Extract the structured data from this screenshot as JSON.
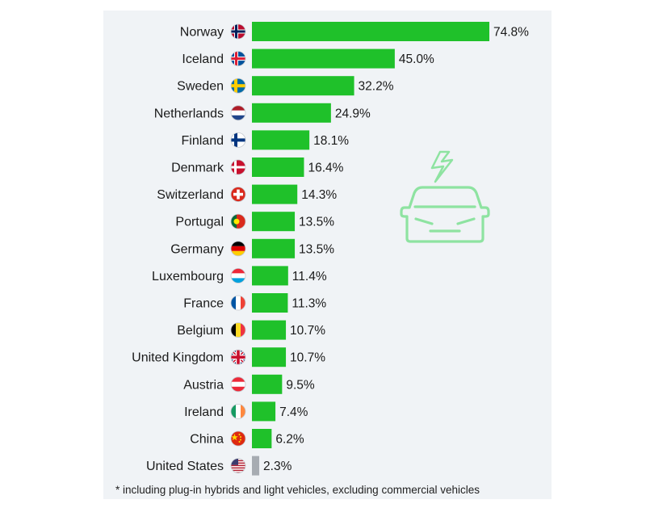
{
  "chart_data": {
    "type": "bar",
    "orientation": "horizontal",
    "title": "",
    "xlabel": "",
    "ylabel": "",
    "categories": [
      "Norway",
      "Iceland",
      "Sweden",
      "Netherlands",
      "Finland",
      "Denmark",
      "Switzerland",
      "Portugal",
      "Germany",
      "Luxembourg",
      "France",
      "Belgium",
      "United Kingdom",
      "Austria",
      "Ireland",
      "China",
      "United States"
    ],
    "values": [
      74.8,
      45.0,
      32.2,
      24.9,
      18.1,
      16.4,
      14.3,
      13.5,
      13.5,
      11.4,
      11.3,
      10.7,
      10.7,
      9.5,
      7.4,
      6.2,
      2.3
    ],
    "value_labels": [
      "74.8%",
      "45.0%",
      "32.2%",
      "24.9%",
      "18.1%",
      "16.4%",
      "14.3%",
      "13.5%",
      "13.5%",
      "11.4%",
      "11.3%",
      "10.7%",
      "10.7%",
      "9.5%",
      "7.4%",
      "6.2%",
      "2.3%"
    ],
    "flags": [
      "norway-flag-icon",
      "iceland-flag-icon",
      "sweden-flag-icon",
      "netherlands-flag-icon",
      "finland-flag-icon",
      "denmark-flag-icon",
      "switzerland-flag-icon",
      "portugal-flag-icon",
      "germany-flag-icon",
      "luxembourg-flag-icon",
      "france-flag-icon",
      "belgium-flag-icon",
      "united-kingdom-flag-icon",
      "austria-flag-icon",
      "ireland-flag-icon",
      "china-flag-icon",
      "united-states-flag-icon"
    ],
    "colors": {
      "bar": "#1fc12a",
      "highlight": "#a7acb2",
      "panel": "#f0f3f6",
      "icon": "#8ee3a1"
    },
    "highlight_category": "United States",
    "xlim": [
      0,
      74.8
    ],
    "grid": false,
    "legend": "none"
  },
  "footnote": "* including plug-in hybrids and light vehicles, excluding commercial vehicles",
  "illustration": "electric-car-icon"
}
